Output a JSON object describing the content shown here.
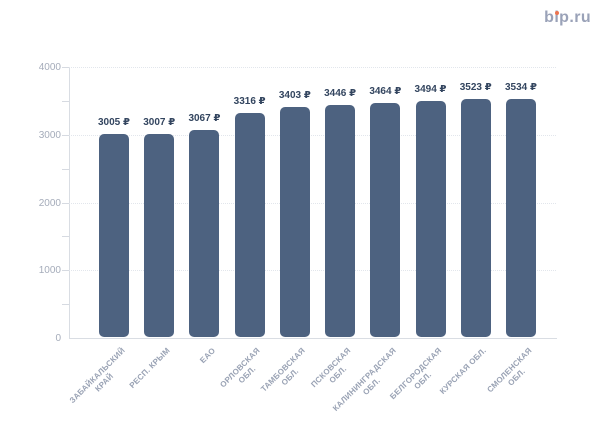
{
  "logo": {
    "text": "bip.ru",
    "dot_color": "#ec7450"
  },
  "chart_data": {
    "type": "bar",
    "title": "",
    "xlabel": "",
    "ylabel": "",
    "categories": [
      "ЗАБАЙКАЛЬСКИЙ КРАЙ",
      "РЕСП. КРЫМ",
      "ЕАО",
      "ОРЛОВСКАЯ ОБЛ.",
      "ТАМБОВСКАЯ ОБЛ.",
      "ПСКОВСКАЯ ОБЛ.",
      "КАЛИНИНГРАДСКАЯ ОБЛ.",
      "БЕЛГОРОДСКАЯ ОБЛ.",
      "КУРСКАЯ ОБЛ.",
      "СМОЛЕНСКАЯ ОБЛ."
    ],
    "categories_line_breaks": [
      [
        "ЗАБАЙКАЛЬСКИЙ",
        "КРАЙ"
      ],
      [
        "РЕСП. КРЫМ"
      ],
      [
        "ЕАО"
      ],
      [
        "ОРЛОВСКАЯ",
        "ОБЛ."
      ],
      [
        "ТАМБОВСКАЯ",
        "ОБЛ."
      ],
      [
        "ПСКОВСКАЯ",
        "ОБЛ."
      ],
      [
        "КАЛИНИНГРАДСКАЯ",
        "ОБЛ."
      ],
      [
        "БЕЛГОРОДСКАЯ",
        "ОБЛ."
      ],
      [
        "КУРСКАЯ ОБЛ."
      ],
      [
        "СМОЛЕНСКАЯ",
        "ОБЛ."
      ]
    ],
    "values": [
      3005,
      3007,
      3067,
      3316,
      3403,
      3446,
      3464,
      3494,
      3523,
      3534
    ],
    "value_labels": [
      "3005 ₽",
      "3007 ₽",
      "3067 ₽",
      "3316 ₽",
      "3403 ₽",
      "3446 ₽",
      "3464 ₽",
      "3494 ₽",
      "3523 ₽",
      "3534 ₽"
    ],
    "value_suffix": " ₽",
    "ylim": [
      0,
      4000
    ],
    "ytick_step": 1000,
    "ytick_minor_step": 500,
    "ytick_labels": [
      "0",
      "1000",
      "2000",
      "3000",
      "4000"
    ],
    "grid": "horizontal dotted lines at major ticks",
    "legend": "none",
    "colors": {
      "bar": "#4d6280",
      "value_label": "#33455f",
      "x_axis_label": "#99a2b4",
      "y_axis_label": "#a5acba",
      "axis_line": "#d9dde3",
      "gridline": "#e2e6ec"
    }
  }
}
